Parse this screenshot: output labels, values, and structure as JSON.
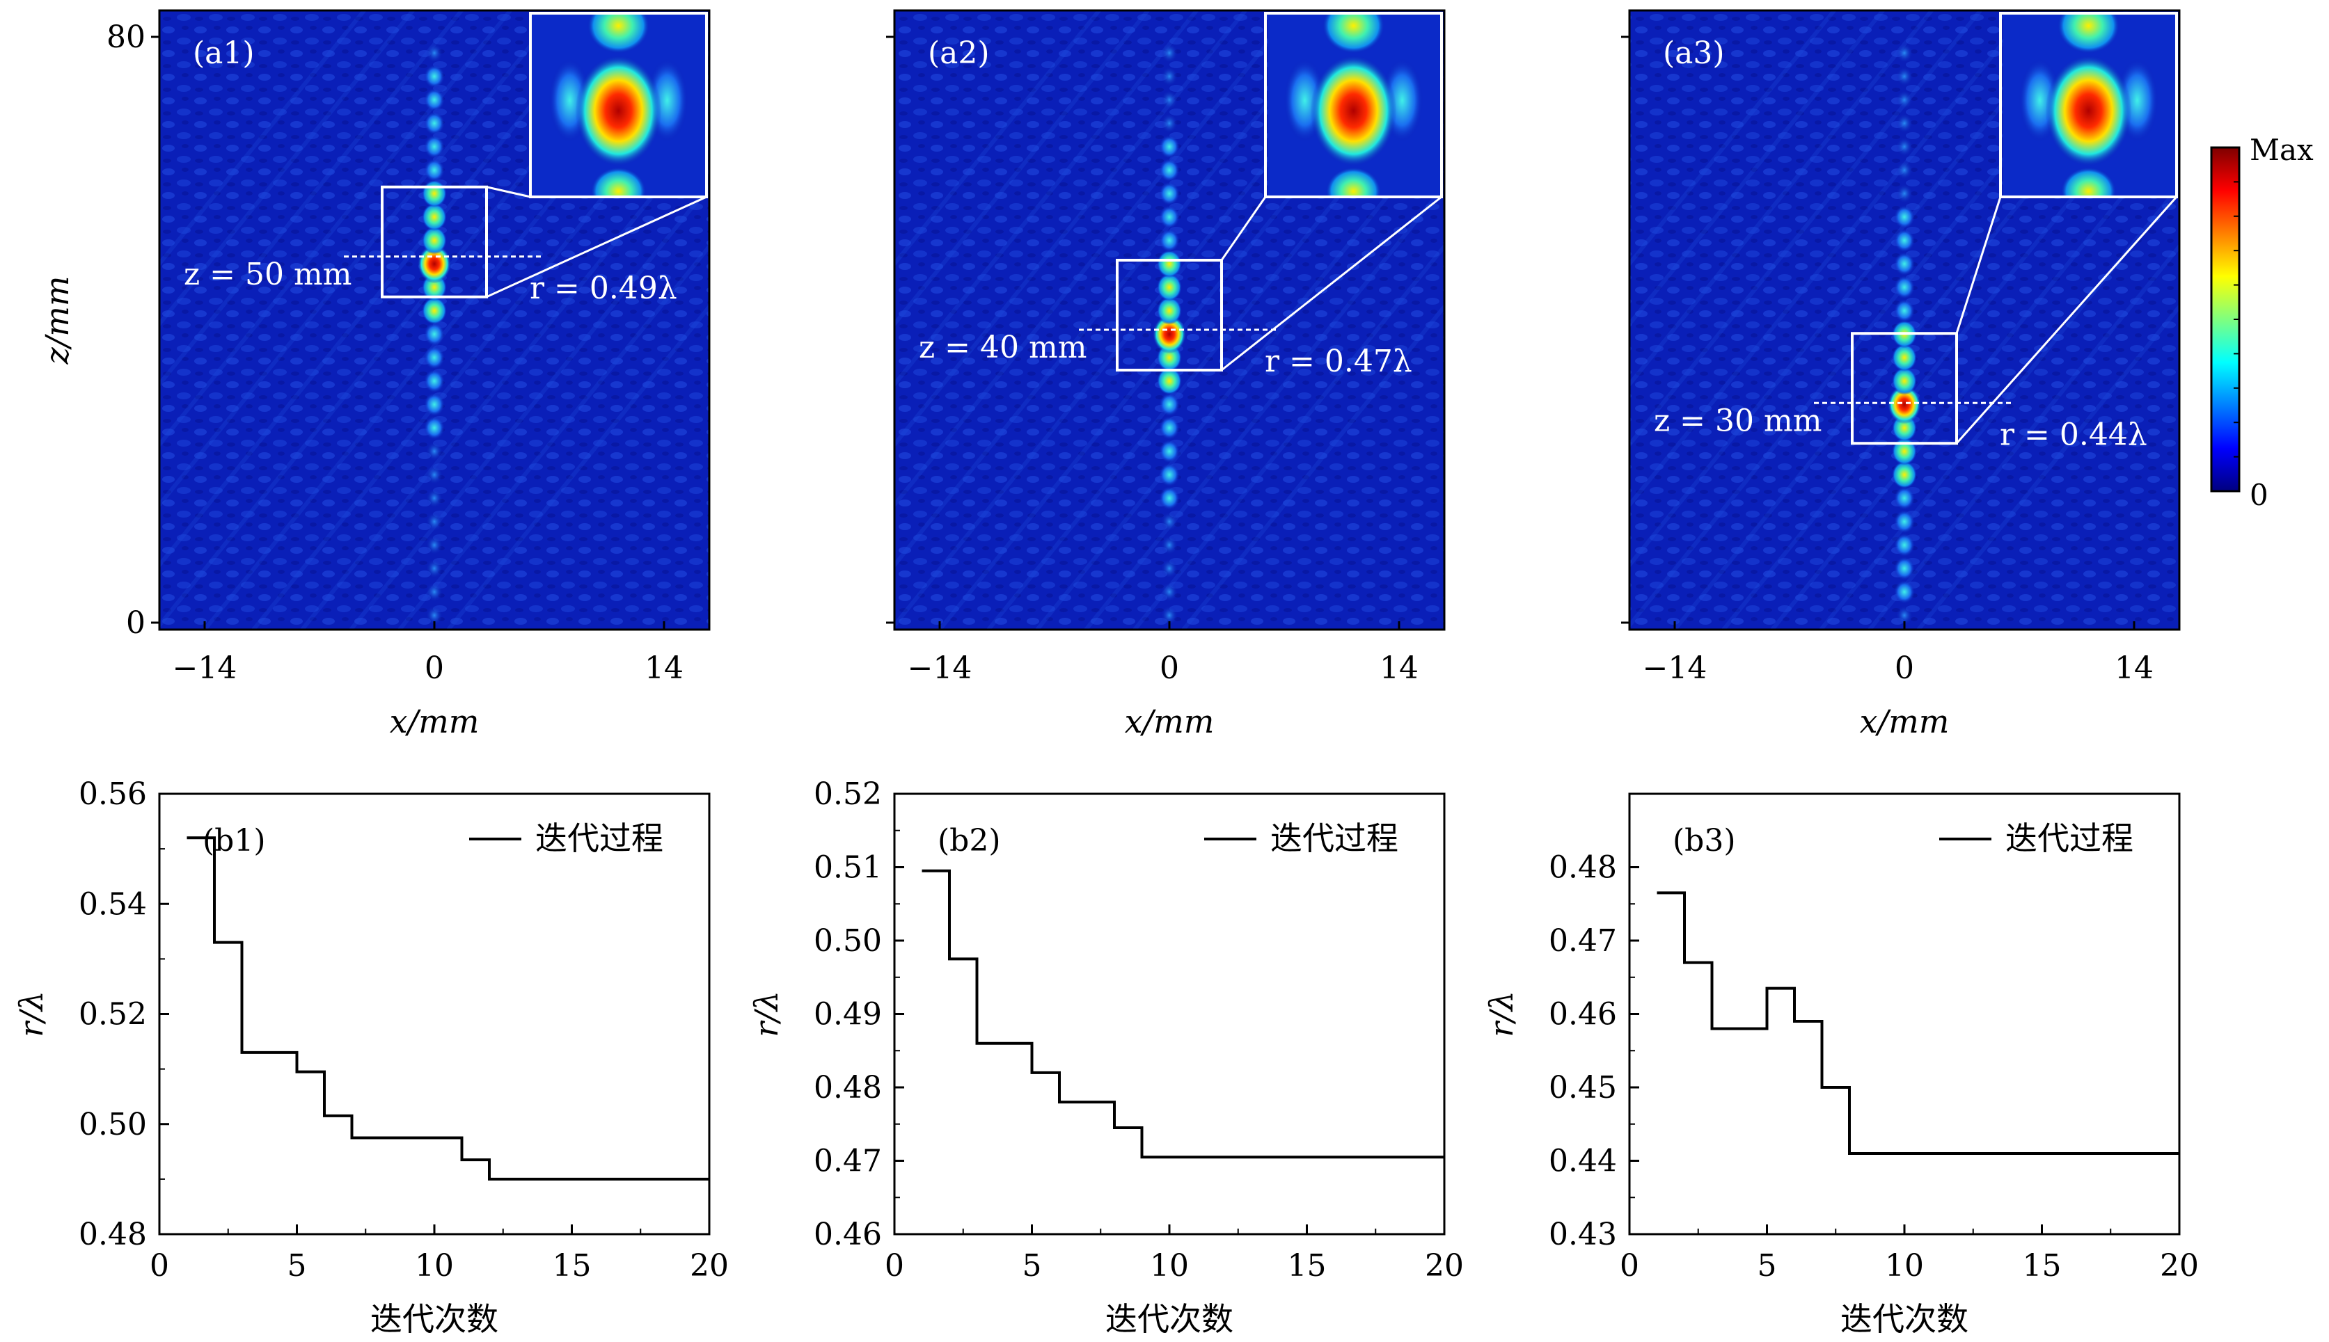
{
  "heatmaps": [
    {
      "panel": "(a1)",
      "x_label": "x/mm",
      "z_label": "z/mm",
      "x_ticks": [
        "−14",
        "0",
        "14"
      ],
      "z_ticks": [
        "80",
        "0"
      ],
      "z_text": "z = 50 mm",
      "r_text": "r = 0.49λ",
      "focus_z_mm": 50
    },
    {
      "panel": "(a2)",
      "x_label": "x/mm",
      "x_ticks": [
        "−14",
        "0",
        "14"
      ],
      "z_text": "z = 40 mm",
      "r_text": "r = 0.47λ",
      "focus_z_mm": 40
    },
    {
      "panel": "(a3)",
      "x_label": "x/mm",
      "x_ticks": [
        "−14",
        "0",
        "14"
      ],
      "z_text": "z = 30 mm",
      "r_text": "r = 0.44λ",
      "focus_z_mm": 30
    }
  ],
  "colorbar": {
    "max_label": "Max",
    "min_label": "0"
  },
  "colors": {
    "axis": "#000000",
    "step_line": "#000000",
    "heat_bg": "#0a1fb8",
    "overlay": "#ffffff"
  },
  "chart_data": [
    {
      "type": "line",
      "panel": "(b1)",
      "title": "",
      "xlabel": "迭代次数",
      "ylabel": "r/λ",
      "legend": "迭代过程",
      "legend_position": "top-right",
      "xlim": [
        0,
        20
      ],
      "ylim": [
        0.48,
        0.56
      ],
      "xticks": [
        0,
        5,
        10,
        15,
        20
      ],
      "yticks": [
        0.48,
        0.5,
        0.52,
        0.54,
        0.56
      ],
      "x": [
        1,
        2,
        3,
        4,
        5,
        6,
        7,
        8,
        9,
        10,
        11,
        12,
        13,
        14,
        15,
        16,
        17,
        18,
        19,
        20
      ],
      "y": [
        0.552,
        0.533,
        0.513,
        0.513,
        0.5095,
        0.5015,
        0.4975,
        0.4975,
        0.4975,
        0.4975,
        0.4935,
        0.49,
        0.49,
        0.49,
        0.49,
        0.49,
        0.49,
        0.49,
        0.49,
        0.49
      ]
    },
    {
      "type": "line",
      "panel": "(b2)",
      "title": "",
      "xlabel": "迭代次数",
      "ylabel": "r/λ",
      "legend": "迭代过程",
      "legend_position": "top-right",
      "xlim": [
        0,
        20
      ],
      "ylim": [
        0.46,
        0.52
      ],
      "xticks": [
        0,
        5,
        10,
        15,
        20
      ],
      "yticks": [
        0.46,
        0.47,
        0.48,
        0.49,
        0.5,
        0.51,
        0.52
      ],
      "x": [
        1,
        2,
        3,
        4,
        5,
        6,
        7,
        8,
        9,
        10,
        11,
        12,
        13,
        14,
        15,
        16,
        17,
        18,
        19,
        20
      ],
      "y": [
        0.5095,
        0.4975,
        0.486,
        0.486,
        0.482,
        0.478,
        0.478,
        0.4745,
        0.4705,
        0.4705,
        0.4705,
        0.4705,
        0.4705,
        0.4705,
        0.4705,
        0.4705,
        0.4705,
        0.4705,
        0.4705,
        0.4705
      ]
    },
    {
      "type": "line",
      "panel": "(b3)",
      "title": "",
      "xlabel": "迭代次数",
      "ylabel": "r/λ",
      "legend": "迭代过程",
      "legend_position": "top-right",
      "xlim": [
        0,
        20
      ],
      "ylim": [
        0.43,
        0.49
      ],
      "xticks": [
        0,
        5,
        10,
        15,
        20
      ],
      "yticks": [
        0.43,
        0.44,
        0.45,
        0.46,
        0.47,
        0.48
      ],
      "x": [
        1,
        2,
        3,
        4,
        5,
        6,
        7,
        8,
        9,
        10,
        11,
        12,
        13,
        14,
        15,
        16,
        17,
        18,
        19,
        20
      ],
      "y": [
        0.4765,
        0.467,
        0.458,
        0.458,
        0.4635,
        0.459,
        0.45,
        0.441,
        0.441,
        0.441,
        0.441,
        0.441,
        0.441,
        0.441,
        0.441,
        0.441,
        0.441,
        0.441,
        0.441,
        0.441
      ]
    }
  ]
}
